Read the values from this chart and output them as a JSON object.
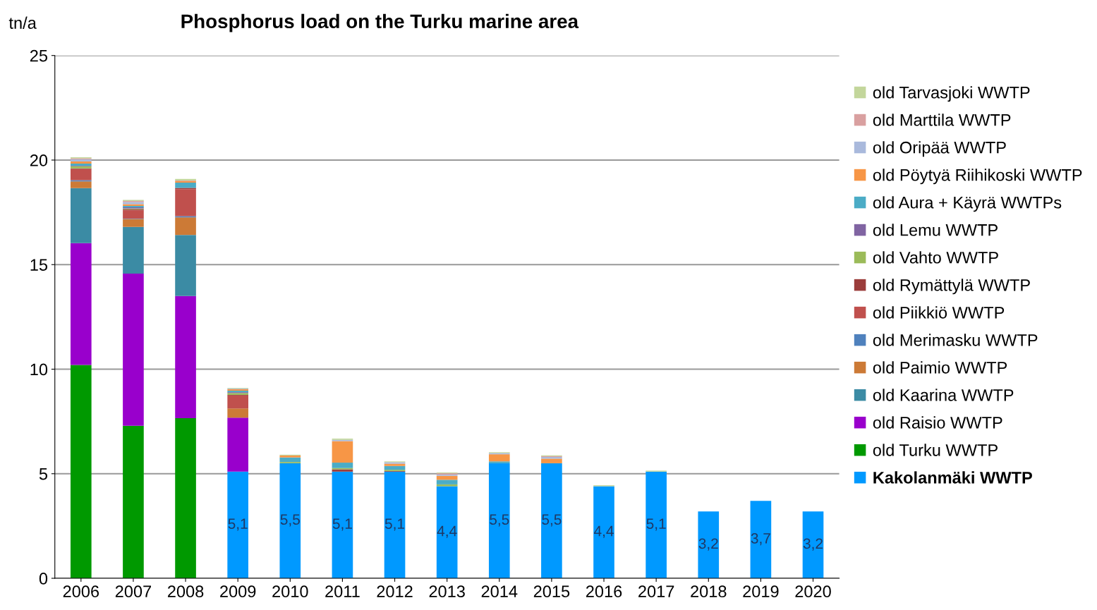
{
  "chart_data": {
    "type": "bar",
    "title": "Phosphorus load on the Turku marine area",
    "ylabel": "tn/a",
    "stacked": true,
    "grid": "y",
    "legend": "right",
    "categories": [
      "2006",
      "2007",
      "2008",
      "2009",
      "2010",
      "2011",
      "2012",
      "2013",
      "2014",
      "2015",
      "2016",
      "2017",
      "2018",
      "2019",
      "2020"
    ],
    "ylim": [
      0,
      25
    ],
    "yticks": [
      0,
      5,
      10,
      15,
      20,
      25
    ],
    "series": [
      {
        "name": "Kakolanmäki WWTP",
        "color": "#0099ff",
        "values": [
          null,
          null,
          null,
          5.1,
          5.5,
          5.1,
          5.1,
          4.4,
          5.5,
          5.5,
          4.4,
          5.1,
          3.2,
          3.7,
          3.2
        ],
        "value_labels": [
          null,
          null,
          null,
          "5,1",
          "5,5",
          "5,1",
          "5,1",
          "4,4",
          "5,5",
          "5,5",
          "4,4",
          "5,1",
          "3,2",
          "3,7",
          "3,2"
        ]
      },
      {
        "name": "old Turku WWTP",
        "color": "#009900",
        "values": [
          10.2,
          7.29,
          7.66,
          null,
          null,
          null,
          null,
          null,
          null,
          null,
          null,
          null,
          null,
          null,
          null
        ]
      },
      {
        "name": "old Raisio WWTP",
        "color": "#9900cc",
        "values": [
          5.83,
          7.28,
          5.84,
          2.58,
          null,
          null,
          null,
          null,
          null,
          null,
          null,
          null,
          null,
          null,
          null
        ]
      },
      {
        "name": "old Kaarina WWTP",
        "color": "#3b8ba4",
        "values": [
          2.63,
          2.23,
          2.92,
          null,
          null,
          null,
          null,
          null,
          null,
          null,
          null,
          null,
          null,
          null,
          null
        ]
      },
      {
        "name": "old Paimio WWTP",
        "color": "#cc7a36",
        "values": [
          0.32,
          0.38,
          0.84,
          0.44,
          null,
          null,
          null,
          null,
          null,
          null,
          null,
          null,
          null,
          null,
          null
        ]
      },
      {
        "name": "old Merimasku WWTP",
        "color": "#4f81bd",
        "values": [
          0.06,
          0.02,
          0.06,
          null,
          null,
          null,
          null,
          null,
          null,
          null,
          null,
          null,
          null,
          null,
          null
        ]
      },
      {
        "name": "old Piikkiö WWTP",
        "color": "#c0504d",
        "values": [
          0.53,
          0.4,
          1.29,
          0.62,
          null,
          null,
          null,
          null,
          null,
          null,
          null,
          null,
          null,
          null,
          null
        ]
      },
      {
        "name": "old Rymättylä WWTP",
        "color": "#9b3d3b",
        "values": [
          0.03,
          0.05,
          0.06,
          0.03,
          null,
          0.11,
          0.03,
          null,
          null,
          null,
          null,
          null,
          null,
          null,
          null
        ]
      },
      {
        "name": "old Vahto WWTP",
        "color": "#9bbb59",
        "values": [
          0.1,
          0.03,
          null,
          0.09,
          0.06,
          0.06,
          0.06,
          0.09,
          null,
          null,
          null,
          null,
          null,
          null,
          null
        ]
      },
      {
        "name": "old Lemu WWTP",
        "color": "#8064a2",
        "values": [
          0.03,
          0.06,
          null,
          0.04,
          null,
          null,
          null,
          null,
          null,
          null,
          null,
          null,
          null,
          null,
          null
        ]
      },
      {
        "name": "old Aura + Käyrä WWTPs",
        "color": "#4bacc6",
        "values": [
          0.1,
          0.07,
          0.25,
          0.07,
          0.22,
          0.26,
          0.18,
          0.22,
          0.09,
          null,
          null,
          null,
          null,
          null,
          null
        ]
      },
      {
        "name": "old Pöytyä Riihikoski WWTP",
        "color": "#f79646",
        "values": [
          0.1,
          0.08,
          0.07,
          0.07,
          0.09,
          1.03,
          0.11,
          0.19,
          0.34,
          0.22,
          null,
          null,
          null,
          null,
          null
        ]
      },
      {
        "name": "old Oripää WWTP",
        "color": "#a9b9dc",
        "values": [
          0.1,
          0.1,
          null,
          0.03,
          null,
          0.06,
          0.07,
          0.06,
          0.06,
          0.08,
          null,
          null,
          null,
          null,
          null
        ]
      },
      {
        "name": "old Marttila WWTP",
        "color": "#d9a0a0",
        "values": [
          0.05,
          0.05,
          0.03,
          null,
          null,
          null,
          null,
          0.06,
          null,
          0.04,
          null,
          null,
          null,
          null,
          null
        ]
      },
      {
        "name": "old Tarvasjoki WWTP",
        "color": "#c3d69b",
        "values": [
          0.05,
          0.05,
          0.08,
          0.03,
          0.04,
          0.06,
          0.04,
          0.04,
          0.04,
          0.04,
          0.05,
          0.05,
          null,
          null,
          null
        ]
      }
    ]
  }
}
